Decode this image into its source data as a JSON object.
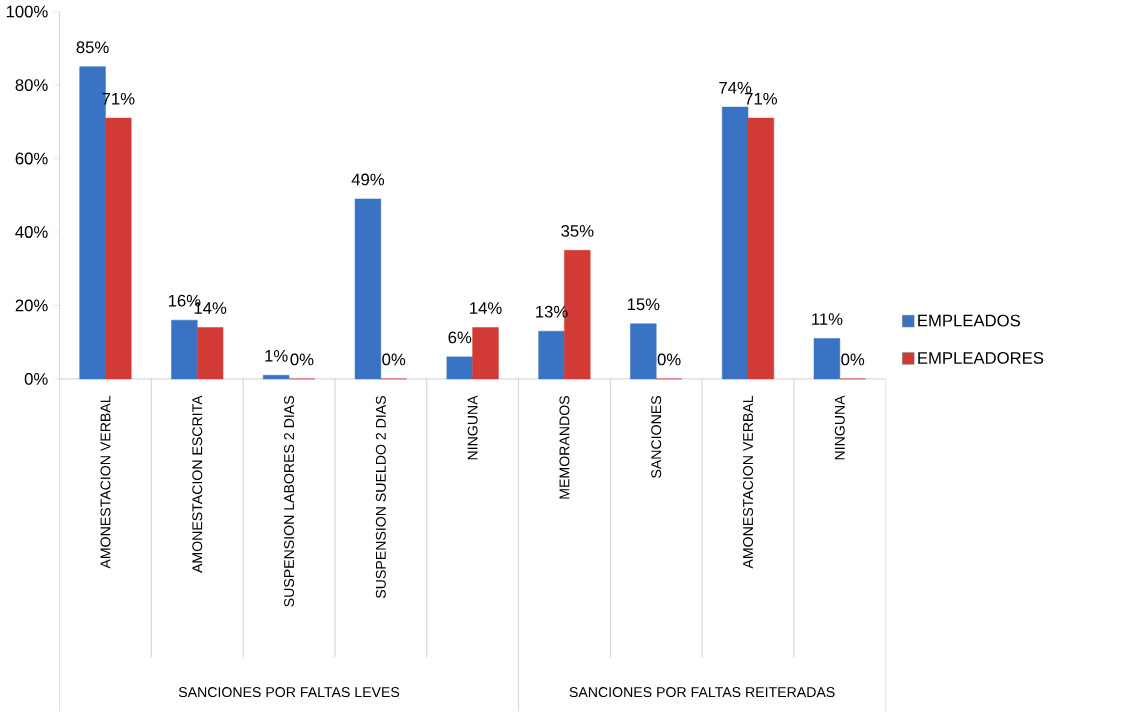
{
  "chart_data": {
    "type": "bar",
    "categories": [
      "AMONESTACION VERBAL",
      "AMONESTACION ESCRITA",
      "SUSPENSION LABORES 2 DIAS",
      "SUSPENSION SUELDO 2 DIAS",
      "NINGUNA",
      "MEMORANDOS",
      "SANCIONES",
      "AMONESTACION VERBAL",
      "NINGUNA"
    ],
    "series": [
      {
        "name": "EMPLEADOS",
        "color": "#3a72c4",
        "values": [
          85,
          16,
          1,
          49,
          6,
          13,
          15,
          74,
          11
        ],
        "value_labels": [
          "85%",
          "16%",
          "1%",
          "49%",
          "6%",
          "13%",
          "15%",
          "74%",
          "11%"
        ]
      },
      {
        "name": "EMPLEADORES",
        "color": "#d23b35",
        "values": [
          71,
          14,
          0,
          0,
          14,
          35,
          0,
          71,
          0
        ],
        "value_labels": [
          "71%",
          "14%",
          "0%",
          "0%",
          "14%",
          "35%",
          "0%",
          "71%",
          "0%"
        ]
      }
    ],
    "ylim": [
      0,
      100
    ],
    "yticks": [
      {
        "value": 0,
        "label": "0%"
      },
      {
        "value": 20,
        "label": "20%"
      },
      {
        "value": 40,
        "label": "40%"
      },
      {
        "value": 60,
        "label": "60%"
      },
      {
        "value": 80,
        "label": "80%"
      },
      {
        "value": 100,
        "label": "100%"
      }
    ],
    "legend": "right",
    "annotations": [
      "SANCIONES POR FALTAS LEVES",
      "SANCIONES POR FALTAS REITERADAS"
    ]
  }
}
